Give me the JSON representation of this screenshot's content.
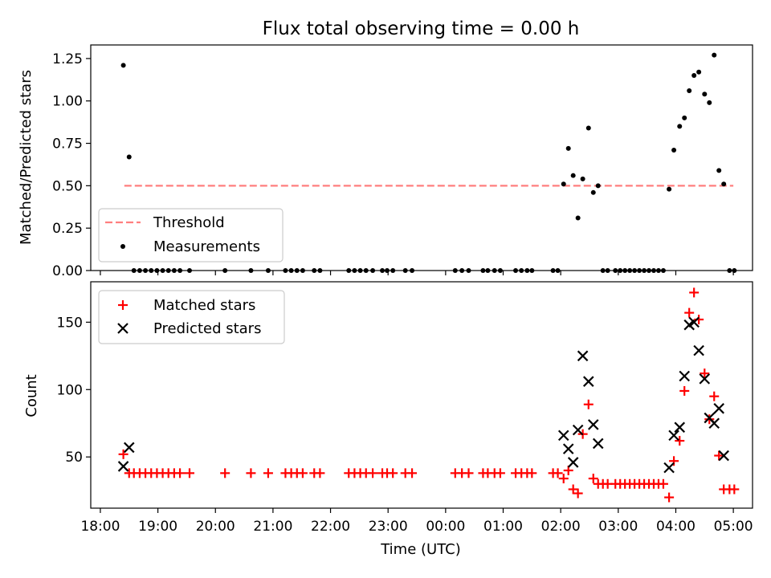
{
  "chart_data": [
    {
      "type": "scatter",
      "title": "Flux total observing time = 0.00 h",
      "ylabel": "Matched/Predicted stars",
      "xlabel": "",
      "xlim": [
        "18:00",
        "05:30"
      ],
      "ylim": [
        0,
        1.33
      ],
      "yticks": [
        "0.00",
        "0.25",
        "0.50",
        "0.75",
        "1.00",
        "1.25"
      ],
      "legend_position": "lower-left",
      "threshold": {
        "name": "Threshold",
        "value": 0.5,
        "x_range": [
          "18:25",
          "05:00"
        ],
        "color": "#ff7f7f",
        "style": "dashed"
      },
      "series": [
        {
          "name": "Measurements",
          "color": "#000000",
          "marker": "dot",
          "points": [
            [
              "18:24",
              1.21
            ],
            [
              "18:30",
              0.67
            ],
            [
              "18:35",
              0
            ],
            [
              "18:41",
              0
            ],
            [
              "18:47",
              0
            ],
            [
              "18:53",
              0
            ],
            [
              "18:59",
              0
            ],
            [
              "19:05",
              0
            ],
            [
              "19:11",
              0
            ],
            [
              "19:17",
              0
            ],
            [
              "19:23",
              0
            ],
            [
              "19:33",
              0
            ],
            [
              "20:10",
              0
            ],
            [
              "20:37",
              0
            ],
            [
              "20:55",
              0
            ],
            [
              "21:13",
              0
            ],
            [
              "21:19",
              0
            ],
            [
              "21:25",
              0
            ],
            [
              "21:31",
              0
            ],
            [
              "21:43",
              0
            ],
            [
              "21:49",
              0
            ],
            [
              "22:19",
              0
            ],
            [
              "22:25",
              0
            ],
            [
              "22:31",
              0
            ],
            [
              "22:37",
              0
            ],
            [
              "22:44",
              0
            ],
            [
              "22:54",
              0
            ],
            [
              "22:59",
              0
            ],
            [
              "23:05",
              0
            ],
            [
              "23:18",
              0
            ],
            [
              "23:25",
              0
            ],
            [
              "00:10",
              0
            ],
            [
              "00:17",
              0
            ],
            [
              "00:24",
              0
            ],
            [
              "00:39",
              0
            ],
            [
              "00:44",
              0
            ],
            [
              "00:51",
              0
            ],
            [
              "00:57",
              0
            ],
            [
              "01:13",
              0
            ],
            [
              "01:19",
              0
            ],
            [
              "01:25",
              0
            ],
            [
              "01:30",
              0
            ],
            [
              "01:52",
              0
            ],
            [
              "01:57",
              0
            ],
            [
              "02:03",
              0.51
            ],
            [
              "02:08",
              0.72
            ],
            [
              "02:13",
              0.56
            ],
            [
              "02:18",
              0.31
            ],
            [
              "02:23",
              0.54
            ],
            [
              "02:29",
              0.84
            ],
            [
              "02:34",
              0.46
            ],
            [
              "02:39",
              0.5
            ],
            [
              "02:44",
              0
            ],
            [
              "02:49",
              0
            ],
            [
              "02:57",
              0
            ],
            [
              "03:02",
              0
            ],
            [
              "03:07",
              0
            ],
            [
              "03:12",
              0
            ],
            [
              "03:17",
              0
            ],
            [
              "03:22",
              0
            ],
            [
              "03:27",
              0
            ],
            [
              "03:32",
              0
            ],
            [
              "03:37",
              0
            ],
            [
              "03:42",
              0
            ],
            [
              "03:47",
              0
            ],
            [
              "03:53",
              0.48
            ],
            [
              "03:58",
              0.71
            ],
            [
              "04:04",
              0.85
            ],
            [
              "04:09",
              0.9
            ],
            [
              "04:14",
              1.06
            ],
            [
              "04:19",
              1.15
            ],
            [
              "04:24",
              1.17
            ],
            [
              "04:30",
              1.04
            ],
            [
              "04:35",
              0.99
            ],
            [
              "04:40",
              1.27
            ],
            [
              "04:45",
              0.59
            ],
            [
              "04:50",
              0.51
            ],
            [
              "04:56",
              0
            ],
            [
              "05:01",
              0
            ]
          ]
        }
      ]
    },
    {
      "type": "scatter",
      "title": "",
      "ylabel": "Count",
      "xlabel": "Time (UTC)",
      "xlim": [
        "18:00",
        "05:30"
      ],
      "ylim": [
        12,
        180
      ],
      "yticks": [
        "50",
        "100",
        "150"
      ],
      "xticks": [
        "18:00",
        "19:00",
        "20:00",
        "21:00",
        "22:00",
        "23:00",
        "00:00",
        "01:00",
        "02:00",
        "03:00",
        "04:00",
        "05:00"
      ],
      "legend_position": "upper-left",
      "series": [
        {
          "name": "Matched stars",
          "color": "#ff0000",
          "marker": "plus",
          "points": [
            [
              "18:24",
              52
            ],
            [
              "18:30",
              38
            ],
            [
              "18:35",
              38
            ],
            [
              "18:41",
              38
            ],
            [
              "18:47",
              38
            ],
            [
              "18:53",
              38
            ],
            [
              "18:59",
              38
            ],
            [
              "19:05",
              38
            ],
            [
              "19:11",
              38
            ],
            [
              "19:17",
              38
            ],
            [
              "19:23",
              38
            ],
            [
              "19:33",
              38
            ],
            [
              "20:10",
              38
            ],
            [
              "20:37",
              38
            ],
            [
              "20:55",
              38
            ],
            [
              "21:13",
              38
            ],
            [
              "21:19",
              38
            ],
            [
              "21:25",
              38
            ],
            [
              "21:31",
              38
            ],
            [
              "21:43",
              38
            ],
            [
              "21:49",
              38
            ],
            [
              "22:19",
              38
            ],
            [
              "22:25",
              38
            ],
            [
              "22:31",
              38
            ],
            [
              "22:37",
              38
            ],
            [
              "22:44",
              38
            ],
            [
              "22:54",
              38
            ],
            [
              "22:59",
              38
            ],
            [
              "23:05",
              38
            ],
            [
              "23:18",
              38
            ],
            [
              "23:25",
              38
            ],
            [
              "00:10",
              38
            ],
            [
              "00:17",
              38
            ],
            [
              "00:24",
              38
            ],
            [
              "00:39",
              38
            ],
            [
              "00:44",
              38
            ],
            [
              "00:51",
              38
            ],
            [
              "00:57",
              38
            ],
            [
              "01:13",
              38
            ],
            [
              "01:19",
              38
            ],
            [
              "01:25",
              38
            ],
            [
              "01:30",
              38
            ],
            [
              "01:52",
              38
            ],
            [
              "01:57",
              38
            ],
            [
              "02:03",
              34
            ],
            [
              "02:08",
              40
            ],
            [
              "02:13",
              26
            ],
            [
              "02:18",
              23
            ],
            [
              "02:23",
              67
            ],
            [
              "02:29",
              89
            ],
            [
              "02:34",
              34
            ],
            [
              "02:39",
              30
            ],
            [
              "02:44",
              30
            ],
            [
              "02:49",
              30
            ],
            [
              "02:57",
              30
            ],
            [
              "03:02",
              30
            ],
            [
              "03:07",
              30
            ],
            [
              "03:12",
              30
            ],
            [
              "03:17",
              30
            ],
            [
              "03:22",
              30
            ],
            [
              "03:27",
              30
            ],
            [
              "03:32",
              30
            ],
            [
              "03:37",
              30
            ],
            [
              "03:42",
              30
            ],
            [
              "03:47",
              30
            ],
            [
              "03:53",
              20
            ],
            [
              "03:58",
              47
            ],
            [
              "04:04",
              62
            ],
            [
              "04:09",
              99
            ],
            [
              "04:14",
              157
            ],
            [
              "04:19",
              172
            ],
            [
              "04:24",
              152
            ],
            [
              "04:30",
              112
            ],
            [
              "04:35",
              78
            ],
            [
              "04:40",
              95
            ],
            [
              "04:45",
              51
            ],
            [
              "04:50",
              26
            ],
            [
              "04:56",
              26
            ],
            [
              "05:01",
              26
            ]
          ]
        },
        {
          "name": "Predicted stars",
          "color": "#000000",
          "marker": "x",
          "points": [
            [
              "18:24",
              43
            ],
            [
              "18:30",
              57
            ],
            [
              "02:03",
              66
            ],
            [
              "02:08",
              56
            ],
            [
              "02:13",
              46
            ],
            [
              "02:18",
              70
            ],
            [
              "02:23",
              125
            ],
            [
              "02:29",
              106
            ],
            [
              "02:34",
              74
            ],
            [
              "02:39",
              60
            ],
            [
              "03:53",
              42
            ],
            [
              "03:58",
              66
            ],
            [
              "04:04",
              72
            ],
            [
              "04:09",
              110
            ],
            [
              "04:14",
              148
            ],
            [
              "04:19",
              150
            ],
            [
              "04:24",
              129
            ],
            [
              "04:30",
              108
            ],
            [
              "04:35",
              79
            ],
            [
              "04:40",
              75
            ],
            [
              "04:45",
              86
            ],
            [
              "04:50",
              51
            ]
          ]
        }
      ]
    }
  ]
}
